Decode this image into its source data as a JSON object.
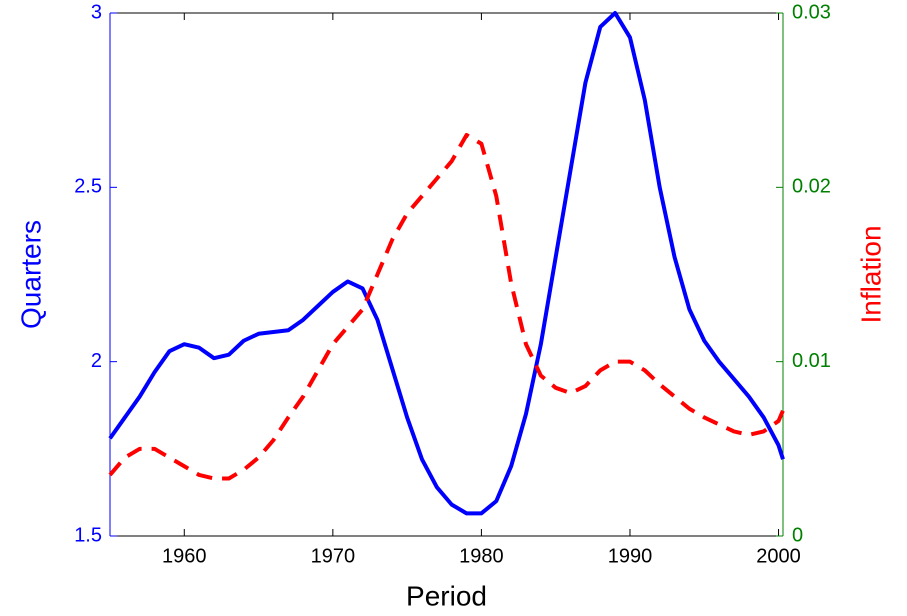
{
  "chart_data": {
    "type": "line",
    "xlabel": "Period",
    "ylabel": "Quarters",
    "y2label": "Inflation",
    "ylabel_color": "#0000ff",
    "y2label_color": "#ff0000",
    "yaxis_color": "#0000ff",
    "y2axis_color": "#008000",
    "x": [
      1955,
      1956,
      1957,
      1958,
      1959,
      1960,
      1961,
      1962,
      1963,
      1964,
      1965,
      1966,
      1967,
      1968,
      1969,
      1970,
      1971,
      1972,
      1973,
      1974,
      1975,
      1976,
      1977,
      1978,
      1979,
      1980,
      1981,
      1982,
      1983,
      1984,
      1985,
      1986,
      1987,
      1988,
      1989,
      1990,
      1991,
      1992,
      1993,
      1994,
      1995,
      1996,
      1997,
      1998,
      1999,
      2000,
      2000.3
    ],
    "series": [
      {
        "color": "#0000ff",
        "linestyle": "solid",
        "axis": "y",
        "values": [
          1.78,
          1.84,
          1.9,
          1.97,
          2.03,
          2.05,
          2.04,
          2.01,
          2.02,
          2.06,
          2.08,
          2.085,
          2.09,
          2.12,
          2.16,
          2.2,
          2.23,
          2.21,
          2.12,
          1.98,
          1.84,
          1.72,
          1.64,
          1.59,
          1.565,
          1.565,
          1.6,
          1.7,
          1.85,
          2.05,
          2.3,
          2.55,
          2.8,
          2.96,
          3.0,
          2.93,
          2.75,
          2.5,
          2.3,
          2.15,
          2.06,
          2.0,
          1.95,
          1.9,
          1.84,
          1.76,
          1.72
        ]
      },
      {
        "color": "#ff0000",
        "linestyle": "dashed",
        "axis": "y2",
        "values": [
          0.0035,
          0.0045,
          0.005,
          0.005,
          0.0045,
          0.004,
          0.0035,
          0.0033,
          0.0033,
          0.0038,
          0.0045,
          0.0055,
          0.0068,
          0.008,
          0.0095,
          0.011,
          0.012,
          0.013,
          0.015,
          0.017,
          0.0185,
          0.0195,
          0.0205,
          0.0215,
          0.023,
          0.0225,
          0.0195,
          0.0145,
          0.011,
          0.0092,
          0.0085,
          0.0082,
          0.0086,
          0.0095,
          0.01,
          0.01,
          0.0095,
          0.0087,
          0.008,
          0.0073,
          0.0068,
          0.0064,
          0.006,
          0.0058,
          0.006,
          0.0066,
          0.0072
        ]
      }
    ],
    "xlim": [
      1955,
      2000.3
    ],
    "xticks": [
      1960,
      1970,
      1980,
      1990,
      2000
    ],
    "ylim": [
      1.5,
      3
    ],
    "yticks": [
      1.5,
      2,
      2.5,
      3
    ],
    "y2lim": [
      0,
      0.03
    ],
    "y2ticks": [
      0,
      0.01,
      0.02,
      0.03
    ]
  }
}
